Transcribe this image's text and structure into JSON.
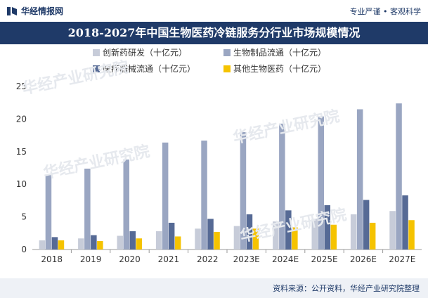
{
  "header": {
    "brand": "华经情报网",
    "slogan": "专业严谨 • 客观科学"
  },
  "title": "2018-2027年中国生物医药冷链服务分行业市场规模情况",
  "source": "资料来源：公开资料，华经产业研究院整理",
  "watermark": "华经产业研究院",
  "colors": {
    "brand": "#1f3a68",
    "s1": "#c7ccd9",
    "s2": "#9aa6c2",
    "s3": "#566a95",
    "s4": "#f5c300"
  },
  "chart_data": {
    "type": "bar",
    "categories": [
      "2018",
      "2019",
      "2020",
      "2021",
      "2022",
      "2023E",
      "2024E",
      "2025E",
      "2026E",
      "2027E"
    ],
    "series": [
      {
        "name": "创新药研发（十亿元）",
        "values": [
          1.4,
          1.7,
          2.1,
          2.8,
          3.2,
          3.6,
          4.3,
          4.7,
          5.4,
          5.9
        ]
      },
      {
        "name": "生物制品流通（十亿元）",
        "values": [
          11.5,
          12.4,
          13.8,
          16.4,
          16.7,
          18.0,
          19.3,
          20.4,
          21.5,
          22.4
        ]
      },
      {
        "name": "医疗器械流通（十亿元）",
        "values": [
          1.9,
          2.2,
          2.8,
          4.1,
          4.7,
          5.4,
          6.0,
          6.8,
          7.6,
          8.3
        ]
      },
      {
        "name": "其他生物医药（十亿元）",
        "values": [
          1.4,
          1.3,
          1.7,
          2.0,
          2.7,
          3.2,
          3.4,
          3.8,
          4.1,
          4.5
        ]
      }
    ],
    "xlabel": "",
    "ylabel": "",
    "ylim": [
      0,
      25
    ],
    "yticks": [
      0,
      5,
      10,
      15,
      20,
      25
    ],
    "legend_position": "top-center",
    "grid": false
  }
}
